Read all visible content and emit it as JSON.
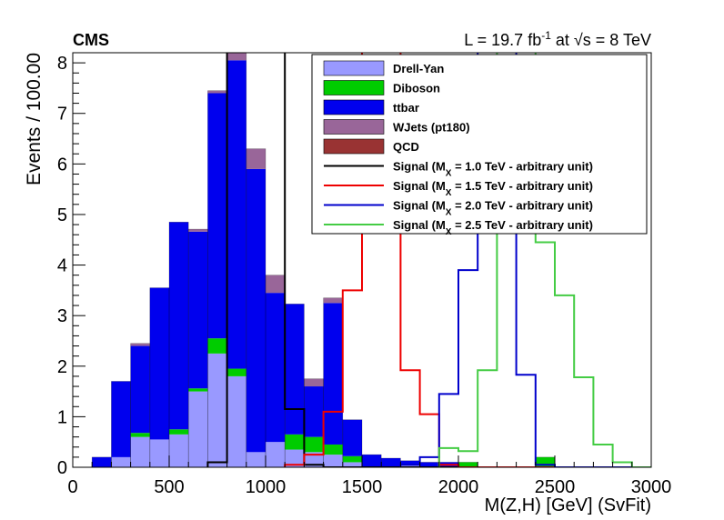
{
  "chart_data": {
    "type": "histogram-stacked",
    "experiment_label": "CMS",
    "lumi_label": {
      "prefix": "L = 19.7 fb",
      "exponent": "-1",
      "at": " at ",
      "sqrt": "√",
      "suffix": "s = 8 TeV"
    },
    "xlabel": "M(Z,H) [GeV] (SvFit)",
    "ylabel": "Events / 100.00",
    "xlim": [
      0,
      3000
    ],
    "ylim": [
      0,
      8.2
    ],
    "xticks": [
      0,
      500,
      1000,
      1500,
      2000,
      2500,
      3000
    ],
    "yticks": [
      0,
      1,
      2,
      3,
      4,
      5,
      6,
      7,
      8
    ],
    "bin_edges": [
      0,
      100,
      200,
      300,
      400,
      500,
      600,
      700,
      800,
      900,
      1000,
      1100,
      1200,
      1300,
      1400,
      1500,
      1600,
      1700,
      1800,
      1900,
      2000,
      2100,
      2200,
      2300,
      2400,
      2500,
      2600,
      2700,
      2800,
      2900,
      3000
    ],
    "legend_position": "top-right",
    "stack": [
      {
        "name": "Drell-Yan",
        "color": "#9999ff",
        "values": [
          0,
          0,
          0.2,
          0.6,
          0.55,
          0.65,
          1.5,
          2.25,
          1.8,
          0.3,
          0.5,
          0.35,
          0.3,
          0.25,
          0.1,
          0,
          0,
          0.05,
          0,
          0,
          0,
          0,
          0,
          0,
          0,
          0,
          0,
          0,
          0,
          0
        ]
      },
      {
        "name": "Diboson",
        "color": "#00cc00",
        "values": [
          0,
          0,
          0,
          0.08,
          0,
          0.1,
          0.06,
          0.3,
          0.15,
          0,
          0,
          0.3,
          0.3,
          0.2,
          0.12,
          0,
          0,
          0,
          0,
          0,
          0.1,
          0,
          0,
          0,
          0.2,
          0,
          0,
          0,
          0,
          0
        ]
      },
      {
        "name": "ttbar",
        "color": "#0000ee",
        "values": [
          0,
          0.2,
          1.5,
          1.72,
          3.0,
          4.1,
          3.1,
          4.85,
          6.1,
          5.6,
          2.95,
          2.58,
          1.0,
          2.8,
          0.72,
          0.25,
          0.18,
          0.08,
          0.1,
          0.1,
          0,
          0,
          0,
          0,
          0,
          0,
          0,
          0,
          0,
          0
        ]
      },
      {
        "name": "WJets (pt180)",
        "color": "#996699",
        "values": [
          0,
          0,
          0,
          0.05,
          0,
          0,
          0.05,
          0.05,
          0.35,
          0.4,
          0.35,
          0,
          0.15,
          0.1,
          0,
          0,
          0,
          0,
          0,
          0,
          0,
          0,
          0,
          0,
          0,
          0,
          0,
          0,
          0,
          0
        ]
      },
      {
        "name": "QCD",
        "color": "#993333",
        "values": [
          0,
          0,
          0,
          0,
          0,
          0,
          0,
          0,
          0,
          0,
          0,
          0,
          0,
          0,
          0,
          0,
          0,
          0,
          0,
          0,
          0,
          0,
          0,
          0,
          0,
          0,
          0,
          0,
          0,
          0
        ]
      }
    ],
    "signals": [
      {
        "name": "Signal (M_X = 1.0 TeV - arbitrary unit)",
        "legend": {
          "pre": "Signal (M",
          "sub": "X",
          "post": " = 1.0 TeV - arbitrary unit)"
        },
        "color": "#000000",
        "values": [
          0,
          0,
          0,
          0,
          0,
          0,
          0,
          0.1,
          9,
          9,
          9,
          1.15,
          0.05,
          0,
          0,
          0,
          0,
          0,
          0,
          0,
          0,
          0,
          0,
          0,
          0,
          0,
          0,
          0,
          0,
          0
        ]
      },
      {
        "name": "Signal (M_X = 1.5 TeV - arbitrary unit)",
        "legend": {
          "pre": "Signal (M",
          "sub": "X",
          "post": " = 1.5 TeV - arbitrary unit)"
        },
        "color": "#ee0000",
        "values": [
          0,
          0,
          0,
          0,
          0,
          0,
          0,
          0,
          0,
          0,
          0,
          0.05,
          0.25,
          1.1,
          3.5,
          9,
          9,
          1.92,
          1.05,
          0.05,
          0,
          0,
          0,
          0,
          0,
          0,
          0,
          0,
          0,
          0
        ]
      },
      {
        "name": "Signal (M_X = 2.0 TeV - arbitrary unit)",
        "legend": {
          "pre": "Signal (M",
          "sub": "X",
          "post": " = 2.0 TeV - arbitrary unit)"
        },
        "color": "#0000cc",
        "values": [
          0,
          0,
          0,
          0,
          0,
          0,
          0,
          0,
          0,
          0,
          0,
          0,
          0,
          0,
          0,
          0,
          0,
          0.05,
          0.2,
          1.45,
          3.9,
          9,
          9,
          1.83,
          0.05,
          0,
          0,
          0,
          0,
          0
        ]
      },
      {
        "name": "Signal (M_X = 2.5 TeV - arbitrary unit)",
        "legend": {
          "pre": "Signal (M",
          "sub": "X",
          "post": " = 2.5 TeV - arbitrary unit)"
        },
        "color": "#44cc44",
        "values": [
          0,
          0,
          0,
          0,
          0,
          0,
          0,
          0,
          0,
          0,
          0,
          0,
          0,
          0,
          0,
          0,
          0,
          0,
          0,
          0.38,
          0.32,
          1.92,
          9,
          9,
          4.45,
          3.4,
          1.78,
          0.45,
          0.1,
          0
        ]
      }
    ]
  }
}
